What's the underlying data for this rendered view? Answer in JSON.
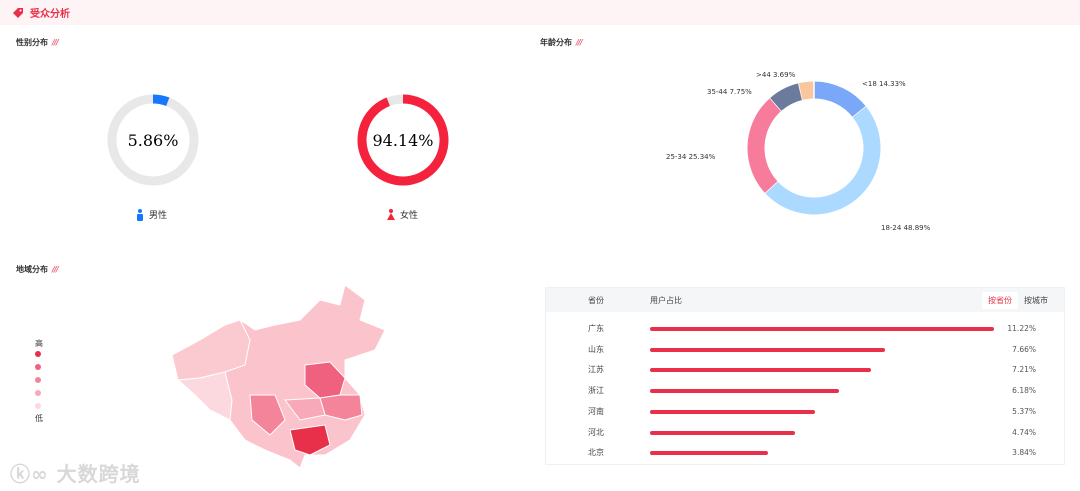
{
  "header": {
    "title": "受众分析",
    "icon": "tag-icon"
  },
  "gender": {
    "title": "性别分布",
    "male": {
      "label": "男性",
      "percent": "5.86%",
      "value": 5.86,
      "color": "#1677ff"
    },
    "female": {
      "label": "女性",
      "percent": "94.14%",
      "value": 94.14,
      "color": "#f5223d"
    }
  },
  "age": {
    "title": "年龄分布",
    "slices": [
      {
        "label": "<18 14.33%",
        "value": 14.33,
        "color": "#7aa7f7"
      },
      {
        "label": "18-24 48.89%",
        "value": 48.89,
        "color": "#acd9ff"
      },
      {
        "label": "25-34 25.34%",
        "value": 25.34,
        "color": "#f77b9b"
      },
      {
        "label": "35-44 7.75%",
        "value": 7.75,
        "color": "#6a7b9b"
      },
      {
        "label": ">44 3.69%",
        "value": 3.69,
        "color": "#f9c69e"
      }
    ]
  },
  "region": {
    "title": "地域分布",
    "legend_high": "高",
    "legend_low": "低",
    "legend_colors": [
      "#e8304a",
      "#f0617f",
      "#f4849a",
      "#f8a9b9",
      "#fcd9e0"
    ]
  },
  "table": {
    "col_province": "省份",
    "col_share": "用户占比",
    "toggle": [
      "按省份",
      "按城市"
    ],
    "rows": [
      {
        "p": "广东",
        "v": "11.22%",
        "n": 11.22
      },
      {
        "p": "山东",
        "v": "7.66%",
        "n": 7.66
      },
      {
        "p": "江苏",
        "v": "7.21%",
        "n": 7.21
      },
      {
        "p": "浙江",
        "v": "6.18%",
        "n": 6.18
      },
      {
        "p": "河南",
        "v": "5.37%",
        "n": 5.37
      },
      {
        "p": "河北",
        "v": "4.74%",
        "n": 4.74
      },
      {
        "p": "北京",
        "v": "3.84%",
        "n": 3.84
      }
    ]
  },
  "watermark": "大数跨境"
}
